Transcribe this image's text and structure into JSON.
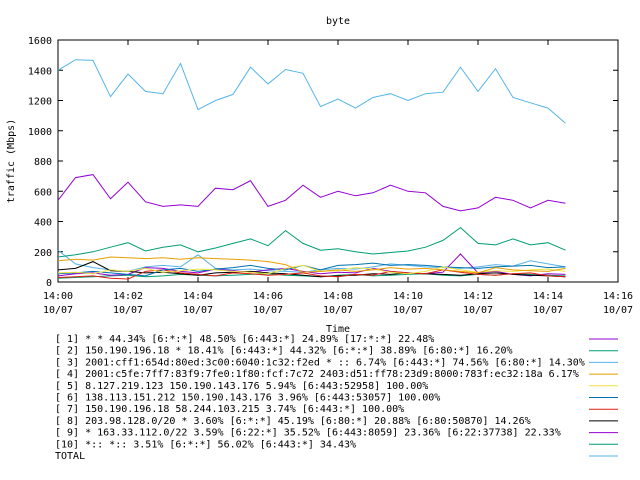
{
  "chart_data": {
    "type": "line",
    "title": "byte",
    "xlabel": "Time",
    "ylabel": "traffic (Mbps)",
    "ylim": [
      0,
      1600
    ],
    "yticks": [
      0,
      200,
      400,
      600,
      800,
      1000,
      1200,
      1400,
      1600
    ],
    "xlim": [
      "14:00",
      "14:16"
    ],
    "xticks": [
      {
        "time": "14:00",
        "date": "10/07"
      },
      {
        "time": "14:02",
        "date": "10/07"
      },
      {
        "time": "14:04",
        "date": "10/07"
      },
      {
        "time": "14:06",
        "date": "10/07"
      },
      {
        "time": "14:08",
        "date": "10/07"
      },
      {
        "time": "14:10",
        "date": "10/07"
      },
      {
        "time": "14:12",
        "date": "10/07"
      },
      {
        "time": "14:14",
        "date": "10/07"
      },
      {
        "time": "14:16",
        "date": "10/07"
      }
    ],
    "x": [
      0.0,
      0.5,
      1.0,
      1.5,
      2.0,
      2.5,
      3.0,
      3.5,
      4.0,
      4.5,
      5.0,
      5.5,
      6.0,
      6.5,
      7.0,
      7.5,
      8.0,
      8.5,
      9.0,
      9.5,
      10.0,
      10.5,
      11.0,
      11.5,
      12.0,
      12.5,
      13.0,
      13.5,
      14.0,
      14.5
    ],
    "x_unit": "minutes after 14:00",
    "legend_placement": "bottom",
    "grid": false,
    "series": [
      {
        "name": "[ 1] * * 44.34%  [6:*:*] 48.50% [6:443:*] 24.89% [17:*:*] 22.48%",
        "color": "#9400d3",
        "values": [
          540,
          690,
          710,
          550,
          660,
          530,
          500,
          510,
          500,
          620,
          610,
          670,
          500,
          540,
          640,
          560,
          600,
          570,
          590,
          640,
          600,
          590,
          500,
          470,
          490,
          560,
          540,
          490,
          540,
          520
        ]
      },
      {
        "name": "[ 2] 150.190.196.18 * 18.41%  [6:443:*] 44.32% [6:*:*] 38.89% [6:80:*] 16.20%",
        "color": "#009e73",
        "values": [
          165,
          180,
          200,
          230,
          260,
          205,
          230,
          245,
          200,
          225,
          255,
          285,
          240,
          340,
          255,
          210,
          220,
          200,
          185,
          195,
          205,
          230,
          275,
          360,
          255,
          245,
          285,
          245,
          260,
          210
        ]
      },
      {
        "name": "[ 3] 2001:cff1:654d:80ed:3c00:6040:1c32:f2ed * :: 6.74%  [6:443:*] 74.56% [6:80:*] 14.30%",
        "color": "#56b4e9",
        "values": [
          1400,
          1470,
          1465,
          1225,
          1375,
          1260,
          1245,
          1445,
          1140,
          1200,
          1240,
          1420,
          1310,
          1405,
          1380,
          1160,
          1210,
          1150,
          1220,
          1245,
          1200,
          1245,
          1255,
          1420,
          1260,
          1410,
          1220,
          1185,
          1150,
          1050
        ]
      },
      {
        "name": "[ 4] 2001:c5fe:7ff7:83f9:7fe0:1f80:fcf:7c72 2403:d51:ff78:23d9:8000:783f:ec32:18a 6.17%",
        "color": "#e69f00",
        "values": [
          140,
          150,
          145,
          165,
          160,
          155,
          160,
          150,
          160,
          155,
          150,
          145,
          135,
          115,
          65,
          70,
          80,
          70,
          80,
          95,
          85,
          90,
          80,
          70,
          60,
          95,
          80,
          75,
          70,
          90
        ]
      },
      {
        "name": "[ 5] 8.127.219.123 150.190.143.176 5.94%  [6:443:52958] 100.00%",
        "color": "#f0e442",
        "values": [
          60,
          65,
          55,
          80,
          70,
          90,
          65,
          75,
          85,
          80,
          70,
          65,
          55,
          90,
          110,
          70,
          75,
          95,
          85,
          65,
          55,
          70,
          100,
          80,
          65,
          75,
          70,
          80,
          85,
          70
        ]
      },
      {
        "name": "[ 6] 138.113.151.212 150.190.143.176 3.96%  [6:443:53057] 100.00%",
        "color": "#0072b2",
        "values": [
          55,
          60,
          70,
          60,
          50,
          40,
          80,
          90,
          70,
          85,
          95,
          110,
          90,
          80,
          110,
          80,
          110,
          115,
          125,
          110,
          115,
          110,
          100,
          95,
          90,
          100,
          105,
          110,
          95,
          100
        ]
      },
      {
        "name": "[ 7] 150.190.196.18 58.244.103.215 3.74%  [6:443:*] 100.00%",
        "color": "#e51e10",
        "values": [
          30,
          35,
          40,
          25,
          20,
          70,
          80,
          60,
          50,
          40,
          60,
          55,
          45,
          50,
          60,
          40,
          35,
          50,
          45,
          70,
          60,
          55,
          80,
          65,
          50,
          45,
          55,
          60,
          40,
          35
        ]
      },
      {
        "name": "[ 8] 203.98.128.0/20 * 3.60%  [6:*:*] 45.19% [6:80:*] 20.88% [6:80:50870] 14.26%",
        "color": "#000000",
        "values": [
          80,
          90,
          135,
          75,
          70,
          60,
          65,
          55,
          45,
          60,
          65,
          70,
          60,
          55,
          45,
          35,
          40,
          45,
          55,
          50,
          60,
          55,
          50,
          45,
          55,
          60,
          50,
          45,
          40,
          35
        ]
      },
      {
        "name": "[ 9] * 163.33.112.0/22 3.59%  [6:22:*] 35.52% [6:443:8059] 23.36% [6:22:37738] 22.33%",
        "color": "#9400d3",
        "values": [
          40,
          55,
          60,
          45,
          50,
          95,
          90,
          70,
          60,
          85,
          75,
          65,
          80,
          90,
          70,
          55,
          65,
          60,
          90,
          70,
          60,
          55,
          65,
          185,
          60,
          70,
          50,
          40,
          55,
          50
        ]
      },
      {
        "name": "[10] *:: *:: 3.51%  [6:*:*] 56.02% [6:443:*] 34.43%",
        "color": "#009e73",
        "values": [
          25,
          30,
          35,
          40,
          45,
          35,
          40,
          50,
          45,
          40,
          45,
          50,
          55,
          45,
          40,
          35,
          45,
          50,
          40,
          45,
          50,
          55,
          45,
          40,
          50,
          45,
          55,
          50,
          45,
          40
        ]
      },
      {
        "name": "TOTAL",
        "color": "#56b4e9",
        "values": [
          210,
          120,
          95,
          80,
          70,
          100,
          110,
          100,
          180,
          90,
          80,
          85,
          75,
          70,
          65,
          80,
          90,
          85,
          100,
          120,
          110,
          100,
          95,
          90,
          100,
          115,
          105,
          140,
          120,
          100
        ]
      }
    ]
  }
}
